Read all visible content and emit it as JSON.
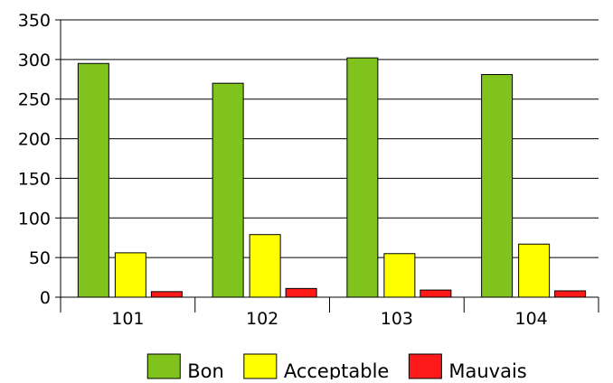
{
  "chart_data": {
    "type": "bar",
    "categories": [
      "101",
      "102",
      "103",
      "104"
    ],
    "series": [
      {
        "name": "Bon",
        "values": [
          295,
          270,
          302,
          281
        ],
        "color": "#7fc31c"
      },
      {
        "name": "Acceptable",
        "values": [
          56,
          79,
          55,
          67
        ],
        "color": "#ffff00"
      },
      {
        "name": "Mauvais",
        "values": [
          7,
          11,
          9,
          8
        ],
        "color": "#ff1a1a"
      }
    ],
    "yticks": [
      "0",
      "50",
      "100",
      "150",
      "200",
      "250",
      "300",
      "350"
    ],
    "ylim": [
      0,
      350
    ],
    "grid": true,
    "legend_position": "bottom"
  }
}
